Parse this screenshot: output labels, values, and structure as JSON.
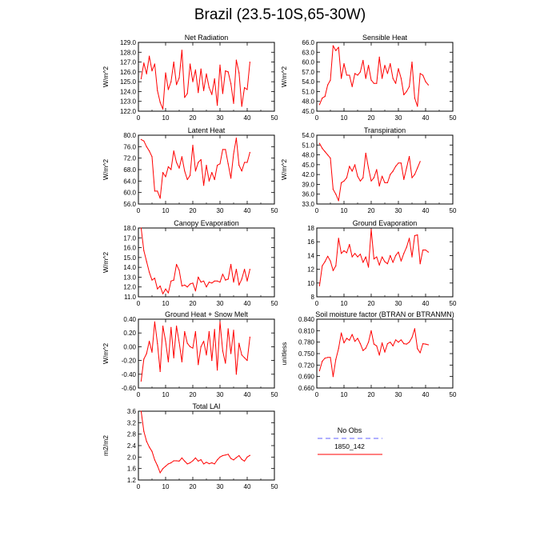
{
  "figure": {
    "title": "Brazil (23.5-10S,65-30W)"
  },
  "chart_data": [
    {
      "type": "line",
      "title": "Net Radiation",
      "ylabel": "W/m^2",
      "xlim": [
        0,
        50
      ],
      "xticks": [
        0,
        10,
        20,
        30,
        40,
        50
      ],
      "ylim": [
        122.0,
        129.0
      ],
      "yticks": [
        122.0,
        123.0,
        124.0,
        125.0,
        126.0,
        127.0,
        128.0,
        129.0
      ],
      "ydec": 1,
      "series": [
        {
          "color": "#ff0000",
          "x": [
            1,
            2,
            3,
            4,
            5,
            6,
            7,
            8,
            9,
            10,
            11,
            12,
            13,
            14,
            15,
            16,
            17,
            18,
            19,
            20,
            21,
            22,
            23,
            24,
            25,
            26,
            27,
            28,
            29,
            30,
            31,
            32,
            33,
            34,
            35,
            36,
            37,
            38,
            39,
            40,
            41
          ],
          "y": [
            125.3,
            126.9,
            125.8,
            127.6,
            126.1,
            126.8,
            124.1,
            122.9,
            122.2,
            125.9,
            124.2,
            125.0,
            127.0,
            124.7,
            125.4,
            128.2,
            123.4,
            123.8,
            126.8,
            125.0,
            126.2,
            123.9,
            126.3,
            124.1,
            125.8,
            124.4,
            123.7,
            125.3,
            122.6,
            126.7,
            123.8,
            126.1,
            126.0,
            124.8,
            122.8,
            127.2,
            125.9,
            122.5,
            124.4,
            124.2,
            127.0
          ]
        }
      ]
    },
    {
      "type": "line",
      "title": "Sensible Heat",
      "ylabel": "W/m^2",
      "xlim": [
        0,
        50
      ],
      "xticks": [
        0,
        10,
        20,
        30,
        40,
        50
      ],
      "ylim": [
        45.0,
        66.0
      ],
      "yticks": [
        45.0,
        48.0,
        51.0,
        54.0,
        57.0,
        60.0,
        63.0,
        66.0
      ],
      "ydec": 1,
      "series": [
        {
          "color": "#ff0000",
          "x": [
            1,
            2,
            3,
            4,
            5,
            6,
            7,
            8,
            9,
            10,
            11,
            12,
            13,
            14,
            15,
            16,
            17,
            18,
            19,
            20,
            21,
            22,
            23,
            24,
            25,
            26,
            27,
            28,
            29,
            30,
            31,
            32,
            33,
            34,
            35,
            36,
            37,
            38,
            39,
            40,
            41
          ],
          "y": [
            47.0,
            49.0,
            49.5,
            53.0,
            54.5,
            65.0,
            63.5,
            64.5,
            55.0,
            59.5,
            56.0,
            56.0,
            52.5,
            56.5,
            56.0,
            57.0,
            60.5,
            55.0,
            59.0,
            54.5,
            53.5,
            53.5,
            61.5,
            55.0,
            59.0,
            56.5,
            59.5,
            55.0,
            53.5,
            58.0,
            55.0,
            50.0,
            51.0,
            52.5,
            60.0,
            49.0,
            46.5,
            56.5,
            56.0,
            54.0,
            53.0
          ]
        }
      ]
    },
    {
      "type": "line",
      "title": "Latent Heat",
      "ylabel": "W/m^2",
      "xlim": [
        0,
        50
      ],
      "xticks": [
        0,
        10,
        20,
        30,
        40,
        50
      ],
      "ylim": [
        56.0,
        80.0
      ],
      "yticks": [
        56.0,
        60.0,
        64.0,
        68.0,
        72.0,
        76.0,
        80.0
      ],
      "ydec": 1,
      "series": [
        {
          "color": "#ff0000",
          "x": [
            1,
            2,
            3,
            4,
            5,
            6,
            7,
            8,
            9,
            10,
            11,
            12,
            13,
            14,
            15,
            16,
            17,
            18,
            19,
            20,
            21,
            22,
            23,
            24,
            25,
            26,
            27,
            28,
            29,
            30,
            31,
            32,
            33,
            34,
            35,
            36,
            37,
            38,
            39,
            40,
            41
          ],
          "y": [
            78.5,
            78.0,
            76.0,
            74.5,
            72.5,
            60.5,
            60.5,
            58.0,
            67.0,
            65.5,
            69.0,
            68.0,
            74.5,
            70.5,
            68.5,
            72.5,
            67.5,
            64.5,
            66.0,
            76.5,
            67.5,
            70.5,
            71.5,
            62.5,
            69.5,
            64.0,
            67.0,
            64.5,
            69.5,
            70.0,
            75.0,
            75.0,
            70.0,
            65.0,
            73.5,
            79.0,
            69.5,
            67.5,
            70.5,
            70.5,
            74.0
          ]
        }
      ]
    },
    {
      "type": "line",
      "title": "Transpiration",
      "ylabel": "W/m^2",
      "xlim": [
        0,
        50
      ],
      "xticks": [
        0,
        10,
        20,
        30,
        40,
        50
      ],
      "ylim": [
        33.0,
        54.0
      ],
      "yticks": [
        33.0,
        36.0,
        39.0,
        42.0,
        45.0,
        48.0,
        51.0,
        54.0
      ],
      "ydec": 1,
      "series": [
        {
          "color": "#ff0000",
          "x": [
            1,
            2,
            3,
            4,
            5,
            6,
            7,
            8,
            9,
            10,
            11,
            12,
            13,
            14,
            15,
            16,
            17,
            18,
            19,
            20,
            21,
            22,
            23,
            24,
            25,
            26,
            27,
            28,
            29,
            30,
            31,
            32,
            33,
            34,
            35,
            36,
            37,
            38,
            39,
            40,
            41
          ],
          "y": [
            51.5,
            50.0,
            49.0,
            48.0,
            47.0,
            37.5,
            36.0,
            34.0,
            39.5,
            40.0,
            41.0,
            44.5,
            43.0,
            45.0,
            41.5,
            40.0,
            41.0,
            48.5,
            44.0,
            40.0,
            41.0,
            43.5,
            38.5,
            41.5,
            39.5,
            39.5,
            42.0,
            43.0,
            44.5,
            45.5,
            45.5,
            40.5,
            44.0,
            47.5,
            41.0,
            42.0,
            44.0,
            46.0,
            null,
            null,
            null
          ]
        }
      ]
    },
    {
      "type": "line",
      "title": "Canopy Evaporation",
      "ylabel": "W/m^2",
      "xlim": [
        0,
        50
      ],
      "xticks": [
        0,
        10,
        20,
        30,
        40,
        50
      ],
      "ylim": [
        11.0,
        18.0
      ],
      "yticks": [
        11.0,
        12.0,
        13.0,
        14.0,
        15.0,
        16.0,
        17.0,
        18.0
      ],
      "ydec": 1,
      "series": [
        {
          "color": "#ff0000",
          "x": [
            1,
            2,
            3,
            4,
            5,
            6,
            7,
            8,
            9,
            10,
            11,
            12,
            13,
            14,
            15,
            16,
            17,
            18,
            19,
            20,
            21,
            22,
            23,
            24,
            25,
            26,
            27,
            28,
            29,
            30,
            31,
            32,
            33,
            34,
            35,
            36,
            37,
            38,
            39,
            40,
            41
          ],
          "y": [
            18.0,
            15.7,
            14.6,
            13.5,
            12.7,
            12.9,
            11.8,
            12.1,
            11.3,
            11.8,
            11.4,
            12.6,
            12.7,
            14.3,
            13.7,
            12.1,
            12.2,
            12.0,
            12.3,
            12.4,
            11.6,
            13.0,
            12.5,
            12.6,
            12.0,
            12.5,
            12.4,
            12.6,
            12.6,
            12.5,
            13.3,
            12.7,
            12.8,
            14.3,
            12.5,
            13.8,
            12.2,
            12.8,
            13.8,
            12.6,
            13.8
          ]
        }
      ]
    },
    {
      "type": "line",
      "title": "Ground Evaporation",
      "ylabel": "",
      "xlim": [
        0,
        50
      ],
      "xticks": [
        0,
        10,
        20,
        30,
        40,
        50
      ],
      "ylim": [
        8,
        18
      ],
      "yticks": [
        8,
        10,
        12,
        14,
        16,
        18
      ],
      "ydec": 0,
      "series": [
        {
          "color": "#ff0000",
          "x": [
            1,
            2,
            3,
            4,
            5,
            6,
            7,
            8,
            9,
            10,
            11,
            12,
            13,
            14,
            15,
            16,
            17,
            18,
            19,
            20,
            21,
            22,
            23,
            24,
            25,
            26,
            27,
            28,
            29,
            30,
            31,
            32,
            33,
            34,
            35,
            36,
            37,
            38,
            39,
            40,
            41
          ],
          "y": [
            9.6,
            12.5,
            13.1,
            13.9,
            13.2,
            11.8,
            12.5,
            16.5,
            14.3,
            14.7,
            14.4,
            15.6,
            13.8,
            14.3,
            13.8,
            14.2,
            13.0,
            13.8,
            12.3,
            17.8,
            13.5,
            13.8,
            12.6,
            13.8,
            13.1,
            12.8,
            14.0,
            13.0,
            14.0,
            14.5,
            13.2,
            14.3,
            15.2,
            16.5,
            13.8,
            16.9,
            17.0,
            12.8,
            14.8,
            14.8,
            14.5
          ]
        }
      ]
    },
    {
      "type": "line",
      "title": "Ground Heat + Snow Melt",
      "ylabel": "W/m^2",
      "xlim": [
        0,
        50
      ],
      "xticks": [
        0,
        10,
        20,
        30,
        40,
        50
      ],
      "ylim": [
        -0.6,
        0.4
      ],
      "yticks": [
        -0.6,
        -0.4,
        -0.2,
        0.0,
        0.2,
        0.4
      ],
      "ydec": 2,
      "series": [
        {
          "color": "#ff0000",
          "x": [
            1,
            2,
            3,
            4,
            5,
            6,
            7,
            8,
            9,
            10,
            11,
            12,
            13,
            14,
            15,
            16,
            17,
            18,
            19,
            20,
            21,
            22,
            23,
            24,
            25,
            26,
            27,
            28,
            29,
            30,
            31,
            32,
            33,
            34,
            35,
            36,
            37,
            38,
            39,
            40,
            41
          ],
          "y": [
            -0.5,
            -0.18,
            -0.1,
            0.08,
            -0.08,
            0.36,
            0.05,
            -0.36,
            0.3,
            0.08,
            -0.22,
            0.28,
            -0.16,
            0.3,
            0.06,
            -0.22,
            0.22,
            0.05,
            0.0,
            -0.02,
            0.22,
            -0.26,
            0.0,
            0.08,
            -0.12,
            0.22,
            -0.2,
            0.25,
            -0.34,
            0.36,
            -0.06,
            -0.24,
            0.26,
            -0.1,
            0.24,
            -0.4,
            0.05,
            -0.12,
            -0.16,
            -0.2,
            0.14
          ]
        }
      ]
    },
    {
      "type": "line",
      "title": "Soil moisture factor (BTRAN or BTRANMN)",
      "ylabel": "unitless",
      "xlim": [
        0,
        50
      ],
      "xticks": [
        0,
        10,
        20,
        30,
        40,
        50
      ],
      "ylim": [
        0.66,
        0.84
      ],
      "yticks": [
        0.66,
        0.69,
        0.72,
        0.75,
        0.78,
        0.81,
        0.84
      ],
      "ydec": 3,
      "series": [
        {
          "color": "#ff0000",
          "x": [
            1,
            2,
            3,
            4,
            5,
            6,
            7,
            8,
            9,
            10,
            11,
            12,
            13,
            14,
            15,
            16,
            17,
            18,
            19,
            20,
            21,
            22,
            23,
            24,
            25,
            26,
            27,
            28,
            29,
            30,
            31,
            32,
            33,
            34,
            35,
            36,
            37,
            38,
            39,
            40,
            41
          ],
          "y": [
            0.705,
            0.73,
            0.738,
            0.74,
            0.74,
            0.69,
            0.735,
            0.763,
            0.804,
            0.778,
            0.79,
            0.785,
            0.8,
            0.782,
            0.79,
            0.776,
            0.758,
            0.764,
            0.78,
            0.81,
            0.775,
            0.77,
            0.746,
            0.778,
            0.754,
            0.776,
            0.78,
            0.77,
            0.786,
            0.78,
            0.786,
            0.776,
            0.775,
            0.78,
            0.792,
            0.815,
            0.763,
            0.752,
            0.776,
            0.775,
            0.773
          ]
        }
      ]
    },
    {
      "type": "line",
      "title": "Total LAI",
      "ylabel": "m2/m2",
      "xlim": [
        0,
        50
      ],
      "xticks": [
        0,
        10,
        20,
        30,
        40,
        50
      ],
      "ylim": [
        1.2,
        3.6
      ],
      "yticks": [
        1.2,
        1.6,
        2.0,
        2.4,
        2.8,
        3.2,
        3.6
      ],
      "ydec": 1,
      "series": [
        {
          "color": "#ff0000",
          "x": [
            1,
            2,
            3,
            4,
            5,
            6,
            7,
            8,
            9,
            10,
            11,
            12,
            13,
            14,
            15,
            16,
            17,
            18,
            19,
            20,
            21,
            22,
            23,
            24,
            25,
            26,
            27,
            28,
            29,
            30,
            31,
            32,
            33,
            34,
            35,
            36,
            37,
            38,
            39,
            40,
            41
          ],
          "y": [
            3.6,
            2.9,
            2.55,
            2.35,
            2.2,
            1.9,
            1.7,
            1.45,
            1.6,
            1.68,
            1.76,
            1.8,
            1.87,
            1.87,
            1.86,
            1.97,
            1.86,
            1.76,
            1.8,
            1.87,
            1.97,
            1.86,
            1.91,
            1.76,
            1.82,
            1.77,
            1.8,
            1.76,
            1.9,
            2.0,
            2.05,
            2.07,
            2.1,
            1.95,
            1.9,
            1.98,
            2.05,
            1.92,
            1.86,
            2.0,
            2.06
          ]
        }
      ]
    }
  ],
  "legend": {
    "title": "No Obs",
    "entries": [
      {
        "label": "1850_142",
        "color": "#ff0000",
        "dash": false
      }
    ],
    "obs_color": "#8080ff"
  }
}
